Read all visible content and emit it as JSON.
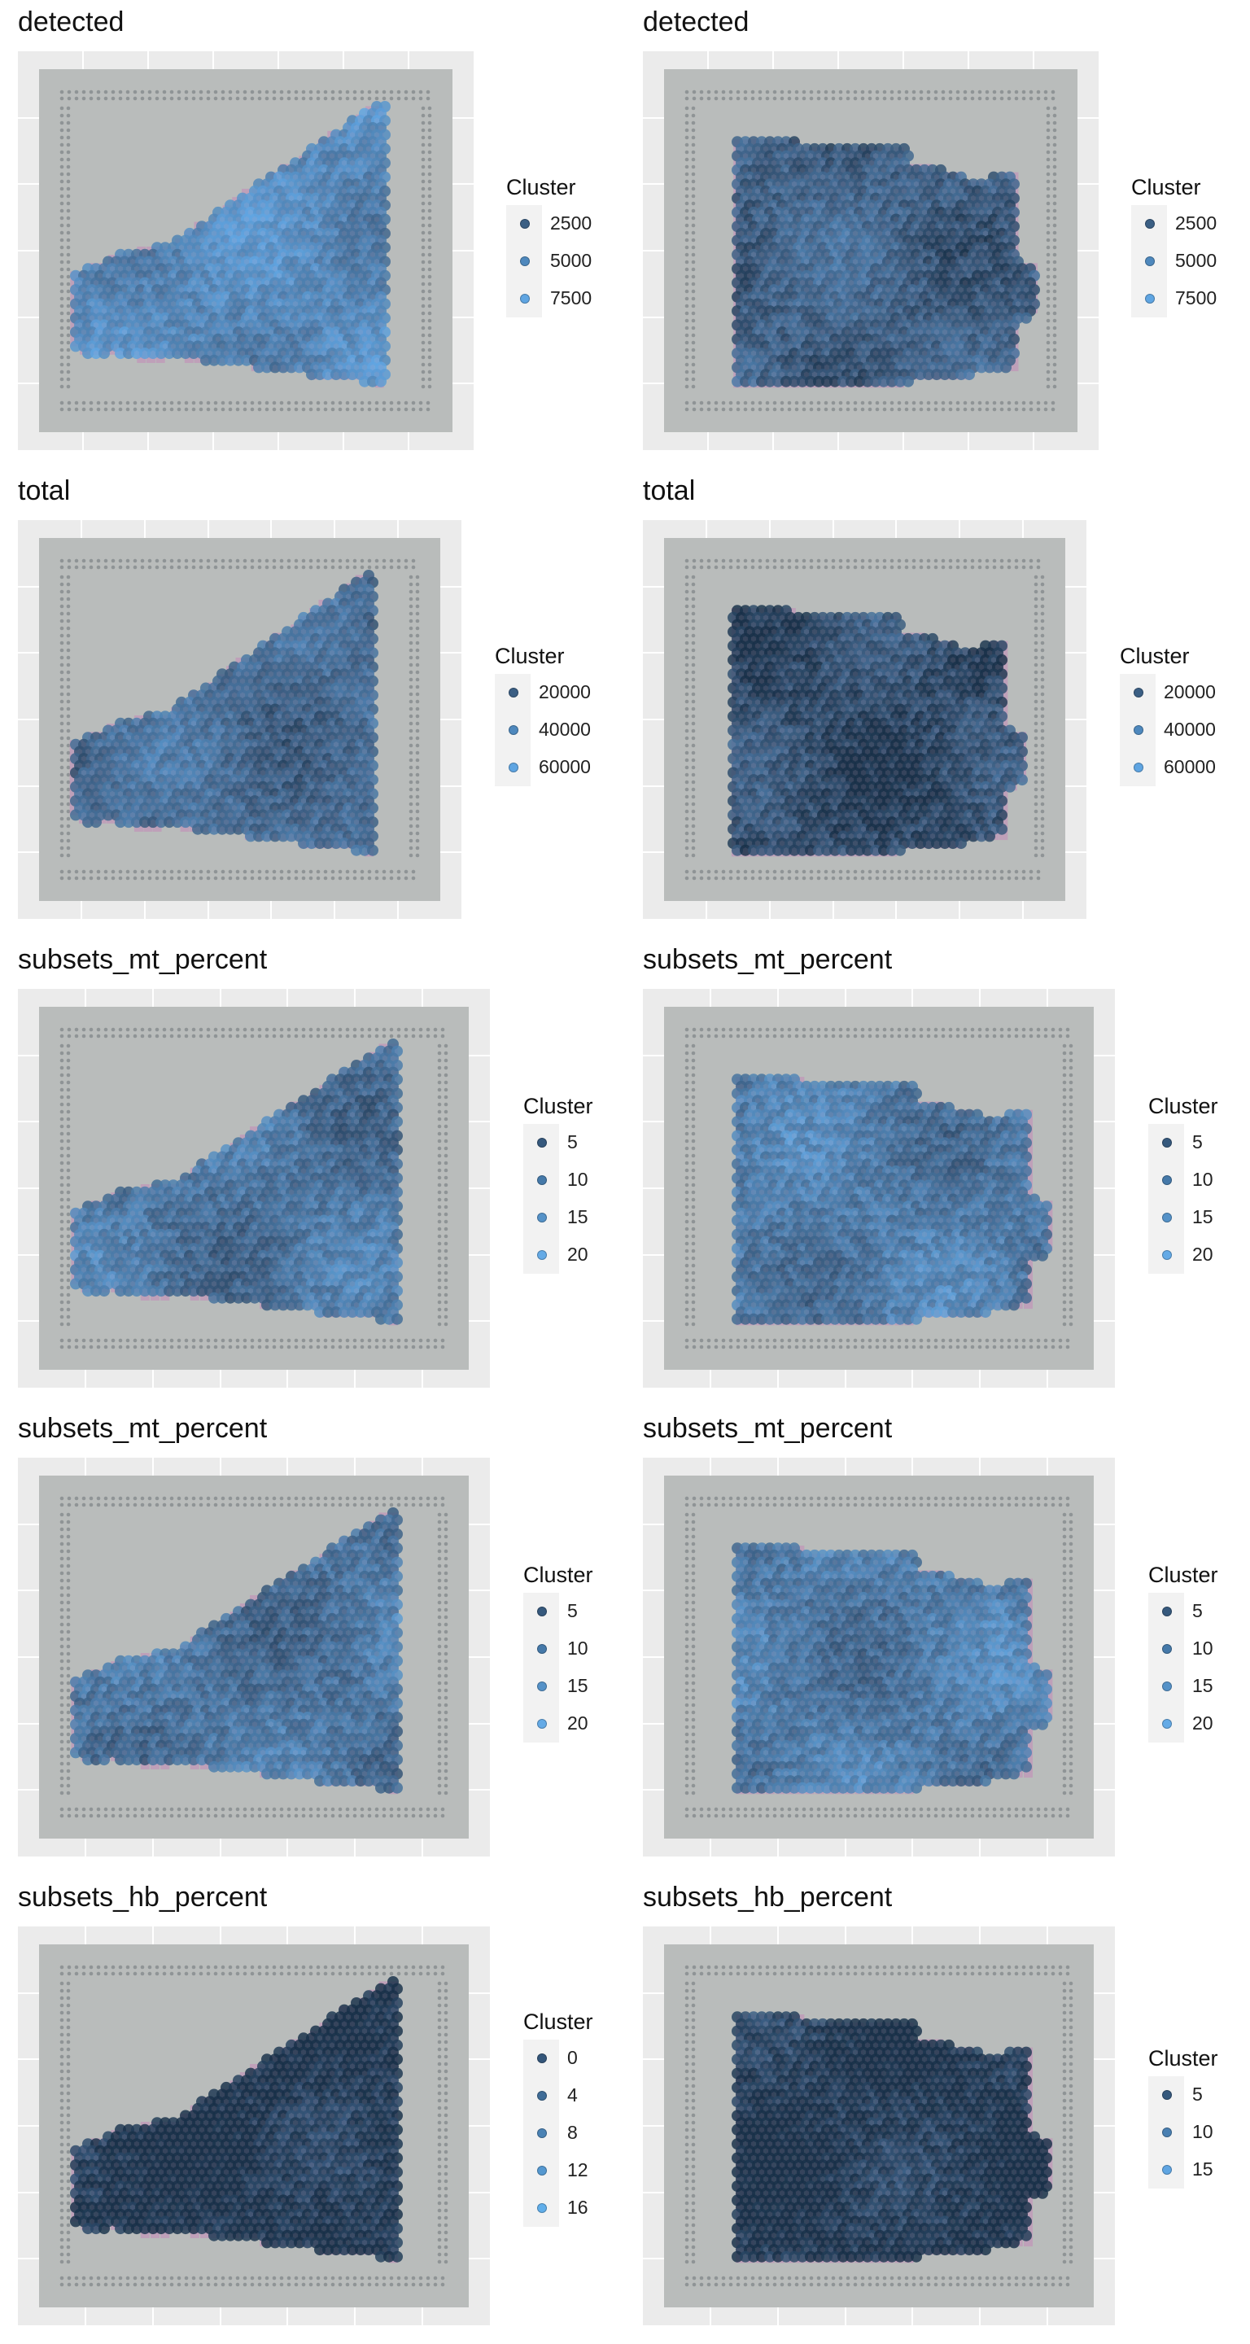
{
  "panels": [
    {
      "title": "detected",
      "legend_title": "Cluster",
      "legend_labels": [
        "2500",
        "5000",
        "7500"
      ],
      "shape": "left-section",
      "mean_fill": 0.72,
      "legend_colors": [
        "#3b5f84",
        "#4e88bd",
        "#5fa5e2"
      ]
    },
    {
      "title": "detected",
      "legend_title": "Cluster",
      "legend_labels": [
        "2500",
        "5000",
        "7500"
      ],
      "shape": "right-section",
      "mean_fill": 0.35,
      "legend_colors": [
        "#3b5f84",
        "#4e88bd",
        "#5fa5e2"
      ]
    },
    {
      "title": "total",
      "legend_title": "Cluster",
      "legend_labels": [
        "20000",
        "40000",
        "60000"
      ],
      "shape": "left-section",
      "mean_fill": 0.45,
      "legend_colors": [
        "#3b5f84",
        "#4e88bd",
        "#5fa5e2"
      ]
    },
    {
      "title": "total",
      "legend_title": "Cluster",
      "legend_labels": [
        "20000",
        "40000",
        "60000"
      ],
      "shape": "right-section",
      "mean_fill": 0.18,
      "legend_colors": [
        "#3b5f84",
        "#4e88bd",
        "#5fa5e2"
      ]
    },
    {
      "title": "subsets_mt_percent",
      "legend_title": "Cluster",
      "legend_labels": [
        "5",
        "10",
        "15",
        "20"
      ],
      "shape": "left-section",
      "mean_fill": 0.55,
      "legend_colors": [
        "#36597d",
        "#4579a9",
        "#5592c8",
        "#64aae6"
      ]
    },
    {
      "title": "subsets_mt_percent",
      "legend_title": "Cluster",
      "legend_labels": [
        "5",
        "10",
        "15",
        "20"
      ],
      "shape": "right-section",
      "mean_fill": 0.6,
      "legend_colors": [
        "#36597d",
        "#4579a9",
        "#5592c8",
        "#64aae6"
      ]
    },
    {
      "title": "subsets_mt_percent",
      "legend_title": "Cluster",
      "legend_labels": [
        "5",
        "10",
        "15",
        "20"
      ],
      "shape": "left-section",
      "mean_fill": 0.55,
      "legend_colors": [
        "#36597d",
        "#4579a9",
        "#5592c8",
        "#64aae6"
      ]
    },
    {
      "title": "subsets_mt_percent",
      "legend_title": "Cluster",
      "legend_labels": [
        "5",
        "10",
        "15",
        "20"
      ],
      "shape": "right-section",
      "mean_fill": 0.6,
      "legend_colors": [
        "#36597d",
        "#4579a9",
        "#5592c8",
        "#64aae6"
      ]
    },
    {
      "title": "subsets_hb_percent",
      "legend_title": "Cluster",
      "legend_labels": [
        "0",
        "4",
        "8",
        "12",
        "16"
      ],
      "shape": "left-section",
      "mean_fill": 0.05,
      "legend_colors": [
        "#34567a",
        "#3f6c97",
        "#4a82b4",
        "#5598d0",
        "#60aeea"
      ]
    },
    {
      "title": "subsets_hb_percent",
      "legend_title": "Cluster",
      "legend_labels": [
        "5",
        "10",
        "15"
      ],
      "shape": "right-section",
      "mean_fill": 0.05,
      "legend_colors": [
        "#36597d",
        "#4a80b2",
        "#5fa5e2"
      ]
    }
  ],
  "chart_data": [
    {
      "type": "scatter",
      "title": "detected",
      "legend_title": "Cluster",
      "color_breaks": [
        2500,
        5000,
        7500
      ]
    },
    {
      "type": "scatter",
      "title": "detected",
      "legend_title": "Cluster",
      "color_breaks": [
        2500,
        5000,
        7500
      ]
    },
    {
      "type": "scatter",
      "title": "total",
      "legend_title": "Cluster",
      "color_breaks": [
        20000,
        40000,
        60000
      ]
    },
    {
      "type": "scatter",
      "title": "total",
      "legend_title": "Cluster",
      "color_breaks": [
        20000,
        40000,
        60000
      ]
    },
    {
      "type": "scatter",
      "title": "subsets_mt_percent",
      "legend_title": "Cluster",
      "color_breaks": [
        5,
        10,
        15,
        20
      ]
    },
    {
      "type": "scatter",
      "title": "subsets_mt_percent",
      "legend_title": "Cluster",
      "color_breaks": [
        5,
        10,
        15,
        20
      ]
    },
    {
      "type": "scatter",
      "title": "subsets_mt_percent",
      "legend_title": "Cluster",
      "color_breaks": [
        5,
        10,
        15,
        20
      ]
    },
    {
      "type": "scatter",
      "title": "subsets_mt_percent",
      "legend_title": "Cluster",
      "color_breaks": [
        5,
        10,
        15,
        20
      ]
    },
    {
      "type": "scatter",
      "title": "subsets_hb_percent",
      "legend_title": "Cluster",
      "color_breaks": [
        0,
        4,
        8,
        12,
        16
      ]
    },
    {
      "type": "scatter",
      "title": "subsets_hb_percent",
      "legend_title": "Cluster",
      "color_breaks": [
        5,
        10,
        15
      ]
    }
  ]
}
